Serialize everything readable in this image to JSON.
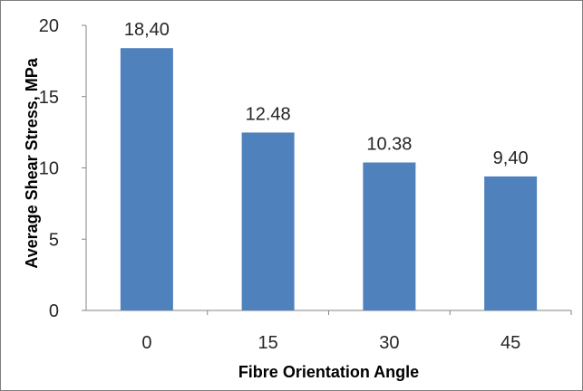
{
  "chart_data": {
    "type": "bar",
    "categories": [
      "0",
      "15",
      "30",
      "45"
    ],
    "values": [
      18.4,
      12.48,
      10.38,
      9.4
    ],
    "data_labels": [
      "18,40",
      "12.48",
      "10.38",
      "9,40"
    ],
    "title": "",
    "xlabel": "Fibre Orientation Angle",
    "ylabel": "Average Shear Stress, MPa",
    "ylim": [
      0,
      20
    ],
    "yticks": [
      "0",
      "5",
      "10",
      "15",
      "20"
    ],
    "grid": false,
    "legend": "none",
    "bar_color": "#4f81bd"
  }
}
